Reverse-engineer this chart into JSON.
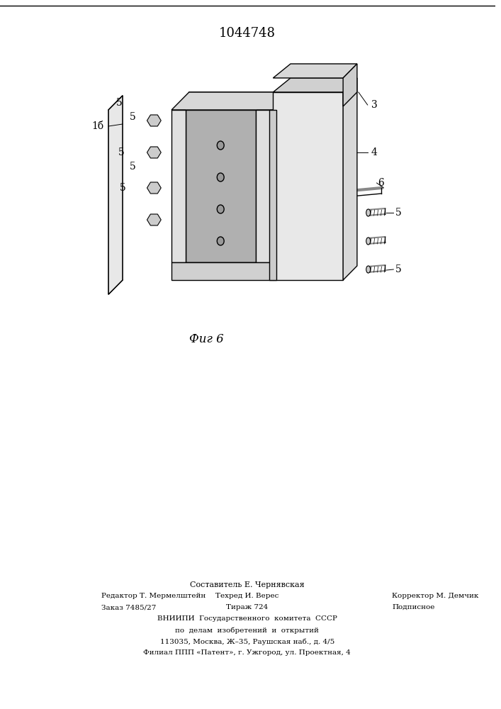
{
  "patent_number": "1044748",
  "fig_label": "Фиг 6",
  "footer_line1": "Составитель Е. Чернявская",
  "footer_line2_left": "Редактор Т. Мермелштейн",
  "footer_line2_mid": "Техред И. Верес",
  "footer_line2_right": "Корректор М. Демчик",
  "footer_line3_left": "Заказ 7485/27",
  "footer_line3_mid": "Тираж 724",
  "footer_line3_right": "Подписное",
  "footer_line4": "ВНИИПИ  Государственного  комитета  СССР",
  "footer_line5": "по  делам  изобретений  и  открытий",
  "footer_line6": "113035, Москва, Ж–35, Раушская наб., д. 4/5",
  "footer_line7": "Филиал ППП «Патент», г. Ужгород, ул. Проектная, 4",
  "bg_color": "#ffffff",
  "line_color": "#000000",
  "label_color": "#000000"
}
